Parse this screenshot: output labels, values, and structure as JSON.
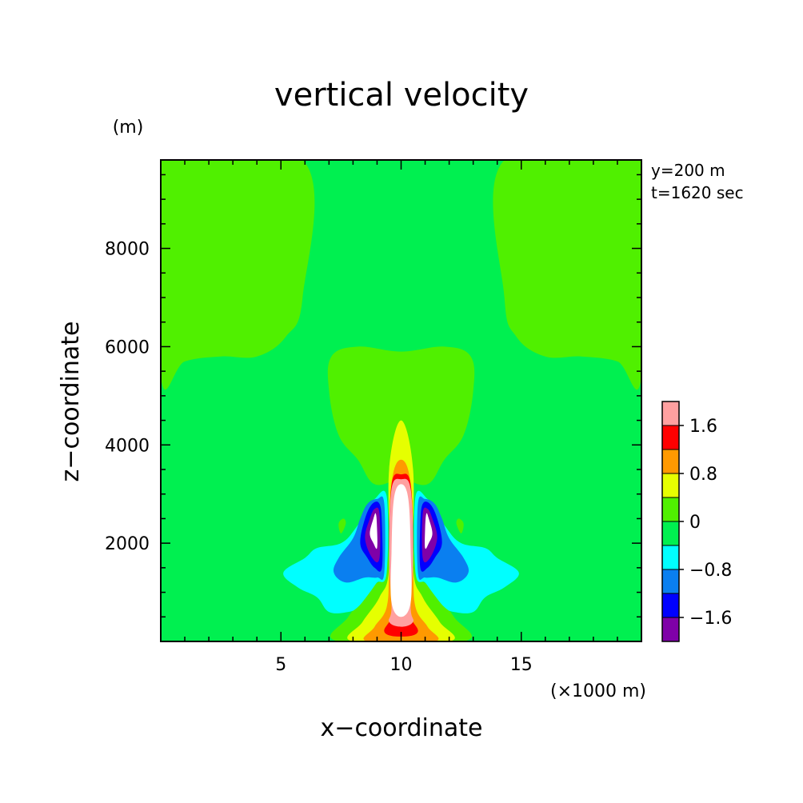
{
  "chart_data": {
    "type": "heatmap",
    "title": "vertical velocity",
    "xlabel": "x−coordinate",
    "ylabel": "z−coordinate",
    "x_unit": "(×1000 m)",
    "y_unit": "(m)",
    "annotations": [
      "y=200 m",
      "t=1620 sec"
    ],
    "xlim": [
      0,
      20
    ],
    "ylim": [
      0,
      9800
    ],
    "x_ticks": [
      5,
      10,
      15
    ],
    "y_ticks": [
      2000,
      4000,
      6000,
      8000
    ],
    "grid": false,
    "colorbar": {
      "placement": "right-bottom",
      "levels": [
        -2.0,
        -1.6,
        -1.2,
        -0.8,
        -0.4,
        0.0,
        0.4,
        0.8,
        1.2,
        1.6,
        2.0
      ],
      "colors": [
        "#7f00a8",
        "#0000ff",
        "#0a7ff0",
        "#00ffff",
        "#00f050",
        "#50f000",
        "#e6ff00",
        "#ff9900",
        "#ff0000",
        "#ffa0a0"
      ],
      "tick_labels": [
        {
          "level": -1.6,
          "label": "−1.6"
        },
        {
          "level": -0.8,
          "label": "−0.8"
        },
        {
          "level": 0.0,
          "label": "0"
        },
        {
          "level": 0.8,
          "label": "0.8"
        },
        {
          "level": 1.6,
          "label": "1.6"
        }
      ]
    },
    "field_regions": [
      {
        "class": "0 to 0.4",
        "color": "#50f000",
        "polygon": [
          [
            0,
            9800
          ],
          [
            5.9,
            9800
          ],
          [
            5.9,
            7000
          ],
          [
            5.2,
            6200
          ],
          [
            4,
            5800
          ],
          [
            2.5,
            5800
          ],
          [
            1,
            5700
          ],
          [
            0,
            5400
          ]
        ]
      },
      {
        "class": "0 to 0.4",
        "color": "#50f000",
        "polygon": [
          [
            14.3,
            9800
          ],
          [
            20,
            9800
          ],
          [
            20,
            5400
          ],
          [
            19,
            5700
          ],
          [
            17.5,
            5800
          ],
          [
            16,
            5800
          ],
          [
            14.8,
            6200
          ],
          [
            14.3,
            7000
          ]
        ]
      },
      {
        "class": "0 to 0.4",
        "color": "#50f000",
        "polygon": [
          [
            7.1,
            5800
          ],
          [
            8.2,
            6000
          ],
          [
            10,
            5900
          ],
          [
            11.8,
            6000
          ],
          [
            12.9,
            5800
          ],
          [
            13.0,
            5100
          ],
          [
            12.6,
            4200
          ],
          [
            11.8,
            3700
          ],
          [
            11.1,
            3200
          ],
          [
            10,
            3300
          ],
          [
            8.9,
            3200
          ],
          [
            8.2,
            3700
          ],
          [
            7.4,
            4200
          ],
          [
            7.0,
            5100
          ]
        ]
      },
      {
        "class": "0 to 0.4",
        "color": "#50f000",
        "polygon": [
          [
            7.6,
            2500
          ],
          [
            7.4,
            2400
          ],
          [
            7.5,
            2200
          ],
          [
            7.7,
            2400
          ]
        ]
      },
      {
        "class": "0 to 0.4",
        "color": "#50f000",
        "polygon": [
          [
            12.4,
            2500
          ],
          [
            12.6,
            2400
          ],
          [
            12.5,
            2200
          ],
          [
            12.3,
            2400
          ]
        ]
      },
      {
        "class": "0 to 0.4",
        "color": "#50f000",
        "polygon": [
          [
            7.4,
            0
          ],
          [
            7.8,
            500
          ],
          [
            8.8,
            1100
          ],
          [
            9.4,
            1500
          ],
          [
            9.6,
            3100
          ],
          [
            9.8,
            3900
          ],
          [
            10,
            4000
          ],
          [
            10.2,
            3900
          ],
          [
            10.4,
            3100
          ],
          [
            10.6,
            1500
          ],
          [
            11.2,
            1100
          ],
          [
            12.2,
            500
          ],
          [
            12.6,
            0
          ]
        ]
      },
      {
        "class": "0.4 to 0.8",
        "color": "#e6ff00",
        "polygon": [
          [
            8.0,
            0
          ],
          [
            8.4,
            400
          ],
          [
            9.1,
            900
          ],
          [
            9.5,
            1500
          ],
          [
            9.5,
            3500
          ],
          [
            10,
            4500
          ],
          [
            10.5,
            3500
          ],
          [
            10.5,
            1500
          ],
          [
            10.9,
            900
          ],
          [
            11.6,
            400
          ],
          [
            12.0,
            0
          ]
        ]
      },
      {
        "class": "0.8 to 1.2",
        "color": "#ff9900",
        "polygon": [
          [
            8.6,
            0
          ],
          [
            8.9,
            300
          ],
          [
            9.4,
            700
          ],
          [
            9.5,
            1500
          ],
          [
            9.6,
            3200
          ],
          [
            10,
            3700
          ],
          [
            10.4,
            3200
          ],
          [
            10.5,
            1500
          ],
          [
            10.6,
            700
          ],
          [
            11.1,
            300
          ],
          [
            11.4,
            0
          ]
        ]
      },
      {
        "class": "1.2 to 1.6",
        "color": "#ff0000",
        "polygon": [
          [
            9.3,
            200
          ],
          [
            9.7,
            600
          ],
          [
            9.7,
            1300
          ],
          [
            9.5,
            1800
          ],
          [
            9.6,
            3200
          ],
          [
            10,
            3400
          ],
          [
            10.4,
            3200
          ],
          [
            10.5,
            1800
          ],
          [
            10.3,
            1300
          ],
          [
            10.3,
            600
          ],
          [
            10.7,
            200
          ],
          [
            10,
            100
          ]
        ]
      },
      {
        "class": "1.6 to 2.0",
        "color": "#ffa0a0",
        "polygon": [
          [
            9.5,
            400
          ],
          [
            9.6,
            700
          ],
          [
            9.5,
            1800
          ],
          [
            9.6,
            3100
          ],
          [
            10,
            3300
          ],
          [
            10.4,
            3100
          ],
          [
            10.5,
            1800
          ],
          [
            10.4,
            700
          ],
          [
            10.5,
            400
          ],
          [
            10,
            300
          ]
        ]
      },
      {
        "class": "above 2.0",
        "color": "#ffffff",
        "polygon": [
          [
            9.6,
            800
          ],
          [
            9.6,
            1800
          ],
          [
            9.7,
            2900
          ],
          [
            10,
            3200
          ],
          [
            10.3,
            2900
          ],
          [
            10.4,
            1800
          ],
          [
            10.4,
            800
          ],
          [
            10,
            500
          ]
        ]
      },
      {
        "class": "-0.8 to -0.4",
        "color": "#00ffff",
        "polygon": [
          [
            5.1,
            1400
          ],
          [
            6.0,
            1700
          ],
          [
            6.5,
            1900
          ],
          [
            7.5,
            2000
          ],
          [
            8.1,
            2300
          ],
          [
            8.6,
            2700
          ],
          [
            8.9,
            2900
          ],
          [
            9.4,
            2950
          ],
          [
            9.4,
            1400
          ],
          [
            9.0,
            1200
          ],
          [
            8.7,
            1000
          ],
          [
            8.2,
            700
          ],
          [
            7.8,
            600
          ],
          [
            7.0,
            600
          ],
          [
            6.5,
            900
          ],
          [
            5.7,
            1100
          ]
        ]
      },
      {
        "class": "-0.8 to -0.4",
        "color": "#00ffff",
        "polygon": [
          [
            14.9,
            1400
          ],
          [
            14.0,
            1700
          ],
          [
            13.5,
            1900
          ],
          [
            12.5,
            2000
          ],
          [
            11.9,
            2300
          ],
          [
            11.4,
            2700
          ],
          [
            11.1,
            2900
          ],
          [
            10.6,
            2950
          ],
          [
            10.6,
            1400
          ],
          [
            11.0,
            1200
          ],
          [
            11.3,
            1000
          ],
          [
            11.8,
            700
          ],
          [
            12.2,
            600
          ],
          [
            13.0,
            600
          ],
          [
            13.5,
            900
          ],
          [
            14.3,
            1100
          ]
        ]
      },
      {
        "class": "-1.2 to -0.8",
        "color": "#0a7ff0",
        "polygon": [
          [
            7.2,
            1400
          ],
          [
            7.4,
            1700
          ],
          [
            8.0,
            2100
          ],
          [
            8.3,
            2500
          ],
          [
            8.6,
            2800
          ],
          [
            9.0,
            2900
          ],
          [
            9.3,
            2800
          ],
          [
            9.3,
            1400
          ],
          [
            9.0,
            1300
          ],
          [
            8.5,
            1300
          ],
          [
            7.7,
            1200
          ]
        ]
      },
      {
        "class": "-1.2 to -0.8",
        "color": "#0a7ff0",
        "polygon": [
          [
            12.8,
            1400
          ],
          [
            12.6,
            1700
          ],
          [
            12.0,
            2100
          ],
          [
            11.7,
            2500
          ],
          [
            11.4,
            2800
          ],
          [
            11.0,
            2900
          ],
          [
            10.7,
            2800
          ],
          [
            10.7,
            1400
          ],
          [
            11.0,
            1300
          ],
          [
            11.5,
            1300
          ],
          [
            12.3,
            1200
          ]
        ]
      },
      {
        "class": "-1.6 to -1.2",
        "color": "#0000ff",
        "polygon": [
          [
            8.3,
            2000
          ],
          [
            8.5,
            2500
          ],
          [
            8.8,
            2800
          ],
          [
            9.1,
            2800
          ],
          [
            9.2,
            2400
          ],
          [
            9.2,
            1500
          ],
          [
            8.9,
            1500
          ],
          [
            8.6,
            1700
          ]
        ]
      },
      {
        "class": "-1.6 to -1.2",
        "color": "#0000ff",
        "polygon": [
          [
            11.7,
            2000
          ],
          [
            11.5,
            2500
          ],
          [
            11.2,
            2800
          ],
          [
            10.9,
            2800
          ],
          [
            10.8,
            2400
          ],
          [
            10.8,
            1500
          ],
          [
            11.1,
            1500
          ],
          [
            11.4,
            1700
          ]
        ]
      },
      {
        "class": "-2.0 to -1.6",
        "color": "#7f00a8",
        "polygon": [
          [
            8.5,
            2100
          ],
          [
            8.7,
            2500
          ],
          [
            8.9,
            2700
          ],
          [
            9.1,
            2600
          ],
          [
            9.1,
            1700
          ],
          [
            8.8,
            1700
          ]
        ]
      },
      {
        "class": "-2.0 to -1.6",
        "color": "#7f00a8",
        "polygon": [
          [
            11.5,
            2100
          ],
          [
            11.3,
            2500
          ],
          [
            11.1,
            2700
          ],
          [
            10.9,
            2600
          ],
          [
            10.9,
            1700
          ],
          [
            11.2,
            1700
          ]
        ]
      },
      {
        "class": "below -2.0",
        "color": "#ffffff",
        "polygon": [
          [
            8.7,
            2200
          ],
          [
            8.85,
            2500
          ],
          [
            8.95,
            2600
          ],
          [
            9.0,
            2300
          ],
          [
            9.0,
            1900
          ],
          [
            8.85,
            2000
          ]
        ]
      },
      {
        "class": "below -2.0",
        "color": "#ffffff",
        "polygon": [
          [
            11.3,
            2200
          ],
          [
            11.15,
            2500
          ],
          [
            11.05,
            2600
          ],
          [
            11.0,
            2300
          ],
          [
            11.0,
            1900
          ],
          [
            11.15,
            2000
          ]
        ]
      }
    ],
    "background_color": "#00f050"
  }
}
